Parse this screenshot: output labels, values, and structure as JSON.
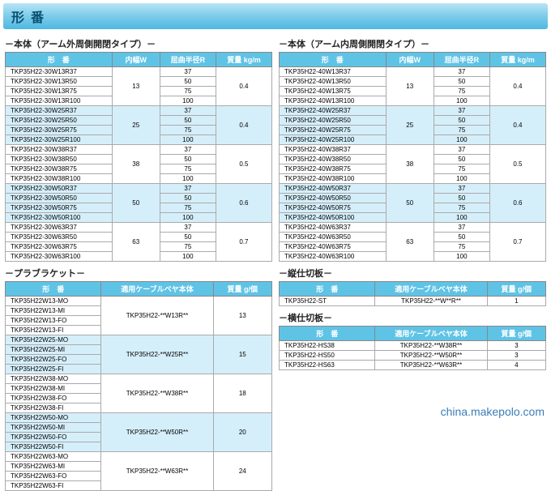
{
  "page_title": "形番",
  "watermark": "china.makepolo.com",
  "left_body": {
    "title": "－本体（アーム外周側開閉タイプ）－",
    "headers": [
      "形　番",
      "内幅W",
      "屈曲半径R",
      "質量 kg/m"
    ],
    "col_widths": [
      "40%",
      "18%",
      "21%",
      "21%"
    ],
    "groups": [
      {
        "w": "13",
        "mass": "0.4",
        "shade": false,
        "rows": [
          [
            "TKP35H22-30W13R37",
            "37"
          ],
          [
            "TKP35H22-30W13R50",
            "50"
          ],
          [
            "TKP35H22-30W13R75",
            "75"
          ],
          [
            "TKP35H22-30W13R100",
            "100"
          ]
        ]
      },
      {
        "w": "25",
        "mass": "0.4",
        "shade": true,
        "rows": [
          [
            "TKP35H22-30W25R37",
            "37"
          ],
          [
            "TKP35H22-30W25R50",
            "50"
          ],
          [
            "TKP35H22-30W25R75",
            "75"
          ],
          [
            "TKP35H22-30W25R100",
            "100"
          ]
        ]
      },
      {
        "w": "38",
        "mass": "0.5",
        "shade": false,
        "rows": [
          [
            "TKP35H22-30W38R37",
            "37"
          ],
          [
            "TKP35H22-30W38R50",
            "50"
          ],
          [
            "TKP35H22-30W38R75",
            "75"
          ],
          [
            "TKP35H22-30W38R100",
            "100"
          ]
        ]
      },
      {
        "w": "50",
        "mass": "0.6",
        "shade": true,
        "rows": [
          [
            "TKP35H22-30W50R37",
            "37"
          ],
          [
            "TKP35H22-30W50R50",
            "50"
          ],
          [
            "TKP35H22-30W50R75",
            "75"
          ],
          [
            "TKP35H22-30W50R100",
            "100"
          ]
        ]
      },
      {
        "w": "63",
        "mass": "0.7",
        "shade": false,
        "rows": [
          [
            "TKP35H22-30W63R37",
            "37"
          ],
          [
            "TKP35H22-30W63R50",
            "50"
          ],
          [
            "TKP35H22-30W63R75",
            "75"
          ],
          [
            "TKP35H22-30W63R100",
            "100"
          ]
        ]
      }
    ]
  },
  "right_body": {
    "title": "－本体（アーム内周側開閉タイプ）－",
    "headers": [
      "形　番",
      "内幅W",
      "屈曲半径R",
      "質量 kg/m"
    ],
    "col_widths": [
      "40%",
      "18%",
      "21%",
      "21%"
    ],
    "groups": [
      {
        "w": "13",
        "mass": "0.4",
        "shade": false,
        "rows": [
          [
            "TKP35H22-40W13R37",
            "37"
          ],
          [
            "TKP35H22-40W13R50",
            "50"
          ],
          [
            "TKP35H22-40W13R75",
            "75"
          ],
          [
            "TKP35H22-40W13R100",
            "100"
          ]
        ]
      },
      {
        "w": "25",
        "mass": "0.4",
        "shade": true,
        "rows": [
          [
            "TKP35H22-40W25R37",
            "37"
          ],
          [
            "TKP35H22-40W25R50",
            "50"
          ],
          [
            "TKP35H22-40W25R75",
            "75"
          ],
          [
            "TKP35H22-40W25R100",
            "100"
          ]
        ]
      },
      {
        "w": "38",
        "mass": "0.5",
        "shade": false,
        "rows": [
          [
            "TKP35H22-40W38R37",
            "37"
          ],
          [
            "TKP35H22-40W38R50",
            "50"
          ],
          [
            "TKP35H22-40W38R75",
            "75"
          ],
          [
            "TKP35H22-40W38R100",
            "100"
          ]
        ]
      },
      {
        "w": "50",
        "mass": "0.6",
        "shade": true,
        "rows": [
          [
            "TKP35H22-40W50R37",
            "37"
          ],
          [
            "TKP35H22-40W50R50",
            "50"
          ],
          [
            "TKP35H22-40W50R75",
            "75"
          ],
          [
            "TKP35H22-40W50R100",
            "100"
          ]
        ]
      },
      {
        "w": "63",
        "mass": "0.7",
        "shade": false,
        "rows": [
          [
            "TKP35H22-40W63R37",
            "37"
          ],
          [
            "TKP35H22-40W63R50",
            "50"
          ],
          [
            "TKP35H22-40W63R75",
            "75"
          ],
          [
            "TKP35H22-40W63R100",
            "100"
          ]
        ]
      }
    ]
  },
  "bracket": {
    "title": "－プラブラケット－",
    "headers": [
      "形　番",
      "適用ケーブルベヤ本体",
      "質量 g/個"
    ],
    "col_widths": [
      "36%",
      "42%",
      "22%"
    ],
    "groups": [
      {
        "body": "TKP35H22-**W13R**",
        "mass": "13",
        "shade": false,
        "rows": [
          "TKP35H22W13-MO",
          "TKP35H22W13-MI",
          "TKP35H22W13-FO",
          "TKP35H22W13-FI"
        ]
      },
      {
        "body": "TKP35H22-**W25R**",
        "mass": "15",
        "shade": true,
        "rows": [
          "TKP35H22W25-MO",
          "TKP35H22W25-MI",
          "TKP35H22W25-FO",
          "TKP35H22W25-FI"
        ]
      },
      {
        "body": "TKP35H22-**W38R**",
        "mass": "18",
        "shade": false,
        "rows": [
          "TKP35H22W38-MO",
          "TKP35H22W38-MI",
          "TKP35H22W38-FO",
          "TKP35H22W38-FI"
        ]
      },
      {
        "body": "TKP35H22-**W50R**",
        "mass": "20",
        "shade": true,
        "rows": [
          "TKP35H22W50-MO",
          "TKP35H22W50-MI",
          "TKP35H22W50-FO",
          "TKP35H22W50-FI"
        ]
      },
      {
        "body": "TKP35H22-**W63R**",
        "mass": "24",
        "shade": false,
        "rows": [
          "TKP35H22W63-MO",
          "TKP35H22W63-MI",
          "TKP35H22W63-FO",
          "TKP35H22W63-FI"
        ]
      }
    ]
  },
  "vsep": {
    "title": "－縦仕切板－",
    "headers": [
      "形　番",
      "適用ケーブルベヤ本体",
      "質量 g/個"
    ],
    "col_widths": [
      "36%",
      "42%",
      "22%"
    ],
    "rows": [
      [
        "TKP35H22-ST",
        "TKP35H22-**W**R**",
        "1"
      ]
    ]
  },
  "hsep": {
    "title": "－横仕切板－",
    "headers": [
      "形　番",
      "適用ケーブルベヤ本体",
      "質量 g/個"
    ],
    "col_widths": [
      "36%",
      "42%",
      "22%"
    ],
    "rows": [
      [
        "TKP35H22-HS38",
        "TKP35H22-**W38R**",
        "3"
      ],
      [
        "TKP35H22-HS50",
        "TKP35H22-**W50R**",
        "3"
      ],
      [
        "TKP35H22-HS63",
        "TKP35H22-**W63R**",
        "4"
      ]
    ]
  }
}
